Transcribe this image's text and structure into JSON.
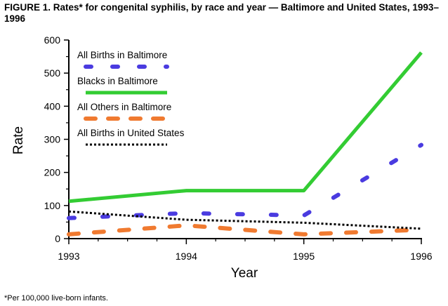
{
  "header": {
    "title": "FIGURE 1. Rates* for congenital syphilis, by race and year — Baltimore and United States, 1993–1996"
  },
  "footnote": "*Per 100,000 live-born infants.",
  "chart_data": {
    "type": "line",
    "title": "FIGURE 1. Rates* for congenital syphilis, by race and year — Baltimore and United States, 1993–1996",
    "xlabel": "Year",
    "ylabel": "Rate",
    "xlim": [
      1993,
      1996
    ],
    "ylim": [
      0,
      600
    ],
    "x_ticks": [
      "1993",
      "1994",
      "1995",
      "1996"
    ],
    "y_ticks": [
      "0",
      "100",
      "200",
      "300",
      "400",
      "500",
      "600"
    ],
    "grid": false,
    "legend_position": "top-left",
    "series": [
      {
        "name": "All Births in Baltimore",
        "color": "#4a3be0",
        "x": [
          1993,
          1994,
          1995,
          1996
        ],
        "values": [
          62,
          77,
          70,
          283
        ]
      },
      {
        "name": "Blacks in Baltimore",
        "color": "#33cc33",
        "x": [
          1993,
          1994,
          1995,
          1996
        ],
        "values": [
          113,
          145,
          145,
          562
        ]
      },
      {
        "name": "All Others in Baltimore",
        "color": "#f07a30",
        "x": [
          1993,
          1994,
          1995,
          1996
        ],
        "values": [
          13,
          40,
          13,
          27
        ]
      },
      {
        "name": "All Births in United States",
        "color": "#000000",
        "x": [
          1993,
          1994,
          1995,
          1996
        ],
        "values": [
          82,
          57,
          48,
          30
        ]
      }
    ]
  }
}
